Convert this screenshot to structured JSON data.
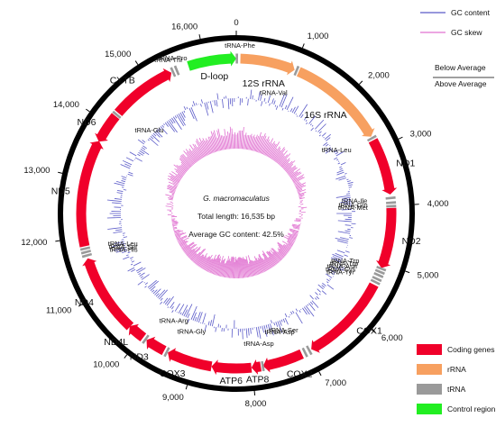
{
  "genome": {
    "species": "G. macromaculatus",
    "length_label": "Total length: 16,535 bp",
    "gc_label": "Average GC content: 42.5%",
    "length_bp": 16535
  },
  "ticks": [
    {
      "pos": 0,
      "label": "0"
    },
    {
      "pos": 1000,
      "label": "1,000"
    },
    {
      "pos": 2000,
      "label": "2,000"
    },
    {
      "pos": 3000,
      "label": "3,000"
    },
    {
      "pos": 4000,
      "label": "4,000"
    },
    {
      "pos": 5000,
      "label": "5,000"
    },
    {
      "pos": 6000,
      "label": "6,000"
    },
    {
      "pos": 7000,
      "label": "7,000"
    },
    {
      "pos": 8000,
      "label": "8,000"
    },
    {
      "pos": 9000,
      "label": "9,000"
    },
    {
      "pos": 10000,
      "label": "10,000"
    },
    {
      "pos": 11000,
      "label": "11,000"
    },
    {
      "pos": 12000,
      "label": "12,000"
    },
    {
      "pos": 13000,
      "label": "13,000"
    },
    {
      "pos": 14000,
      "label": "14,000"
    },
    {
      "pos": 15000,
      "label": "15,000"
    },
    {
      "pos": 16000,
      "label": "16,000"
    }
  ],
  "features": [
    {
      "name": "D-loop",
      "type": "control",
      "start": 15710,
      "end": 16535,
      "strand": 1
    },
    {
      "name": "12S rRNA",
      "type": "rrna",
      "start": 70,
      "end": 1015,
      "strand": 1
    },
    {
      "name": "16S rRNA",
      "type": "rrna",
      "start": 1090,
      "end": 2770,
      "strand": 1
    },
    {
      "name": "ND1",
      "type": "coding",
      "start": 2840,
      "end": 3810,
      "strand": 1
    },
    {
      "name": "ND2",
      "type": "coding",
      "start": 4040,
      "end": 5080,
      "strand": 1
    },
    {
      "name": "COX1",
      "type": "coding",
      "start": 5390,
      "end": 6940,
      "strand": 1
    },
    {
      "name": "COX2",
      "type": "coding",
      "start": 7120,
      "end": 7810,
      "strand": 1
    },
    {
      "name": "ATP8",
      "type": "coding",
      "start": 7850,
      "end": 8010,
      "strand": 1
    },
    {
      "name": "ATP6",
      "type": "coding",
      "start": 8010,
      "end": 8690,
      "strand": 1
    },
    {
      "name": "COX3",
      "type": "coding",
      "start": 8690,
      "end": 9470,
      "strand": 1
    },
    {
      "name": "ND3",
      "type": "coding",
      "start": 9540,
      "end": 9890,
      "strand": 1
    },
    {
      "name": "ND4L",
      "type": "coding",
      "start": 9960,
      "end": 10260,
      "strand": 1
    },
    {
      "name": "ND4",
      "type": "coding",
      "start": 10250,
      "end": 11630,
      "strand": 1
    },
    {
      "name": "ND5",
      "type": "coding",
      "start": 11840,
      "end": 13680,
      "strand": 1
    },
    {
      "name": "ND6",
      "type": "coding",
      "start": 13670,
      "end": 14190,
      "strand": -1
    },
    {
      "name": "CYTB",
      "type": "coding",
      "start": 14260,
      "end": 15400,
      "strand": 1
    }
  ],
  "trnas": [
    {
      "name": "tRNA-Phe",
      "pos": 10
    },
    {
      "name": "tRNA-Val",
      "pos": 1050
    },
    {
      "name": "tRNA-Leu",
      "pos": 2800
    },
    {
      "name": "tRNA-Ile",
      "pos": 3870
    },
    {
      "name": "tRNA-Gln",
      "pos": 3950
    },
    {
      "name": "tRNA-Met",
      "pos": 4010
    },
    {
      "name": "tRNA-Trp",
      "pos": 5090
    },
    {
      "name": "tRNA-Trp",
      "pos": 5150
    },
    {
      "name": "tRNA-Asn",
      "pos": 5210
    },
    {
      "name": "tRNA-Cys",
      "pos": 5280
    },
    {
      "name": "tRNA-Tyr",
      "pos": 5340
    },
    {
      "name": "tRNA-Ser",
      "pos": 6980
    },
    {
      "name": "tRNA-Asp",
      "pos": 7060
    },
    {
      "name": "tRNA-Asp",
      "pos": 7815
    },
    {
      "name": "tRNA-Gly",
      "pos": 9490
    },
    {
      "name": "tRNA-Arg",
      "pos": 9910
    },
    {
      "name": "tRNA-His",
      "pos": 11680
    },
    {
      "name": "tRNA-Ser",
      "pos": 11740
    },
    {
      "name": "tRNA-Leu",
      "pos": 11800
    },
    {
      "name": "tRNA-Glu",
      "pos": 14220
    },
    {
      "name": "tRNA-Thr",
      "pos": 15430
    },
    {
      "name": "tRNA-Pro",
      "pos": 15500
    }
  ],
  "legend_top": [
    {
      "label": "GC content",
      "color": "#5b5bc8"
    },
    {
      "label": "GC skew",
      "color": "#e070d0"
    }
  ],
  "below_average": "Below Average",
  "above_average": "Above Average",
  "legend_bottom": [
    {
      "label": "Coding genes",
      "color": "#f0002a"
    },
    {
      "label": "rRNA",
      "color": "#f7a060"
    },
    {
      "label": "tRNA",
      "color": "#9a9a9a"
    },
    {
      "label": "Control region",
      "color": "#22ee22"
    }
  ],
  "colors": {
    "coding": "#f0002a",
    "rrna": "#f7a060",
    "trna": "#9a9a9a",
    "control": "#22ee22",
    "gc": "#5b5bc8",
    "skew": "#e070d0"
  }
}
